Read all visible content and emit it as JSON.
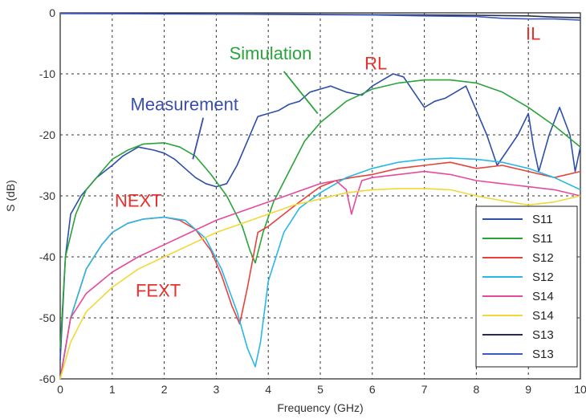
{
  "chart_data": {
    "type": "line",
    "title": "",
    "xlabel": "Frequency (GHz)",
    "ylabel": "S (dB)",
    "xlim": [
      0,
      10
    ],
    "ylim": [
      -60,
      0
    ],
    "xticks": [
      0,
      1,
      2,
      3,
      4,
      5,
      6,
      7,
      8,
      9,
      10
    ],
    "yticks": [
      0,
      -10,
      -20,
      -30,
      -40,
      -50,
      -60
    ],
    "grid": true,
    "legend_position": "bottom-right",
    "series": [
      {
        "name": "S11",
        "color": "#2e4fa8",
        "x": [
          0,
          0.1,
          0.2,
          0.4,
          0.7,
          1.0,
          1.2,
          1.5,
          1.8,
          2.0,
          2.2,
          2.4,
          2.6,
          2.8,
          3.0,
          3.2,
          3.4,
          3.6,
          3.8,
          4.0,
          4.2,
          4.4,
          4.6,
          4.8,
          5.0,
          5.2,
          5.5,
          5.8,
          6.0,
          6.2,
          6.4,
          6.6,
          6.8,
          7.0,
          7.2,
          7.4,
          7.6,
          7.8,
          8.0,
          8.2,
          8.4,
          8.6,
          8.8,
          9.0,
          9.1,
          9.2,
          9.4,
          9.6,
          9.8,
          9.9,
          10.0
        ],
        "y": [
          -57,
          -40,
          -33,
          -30,
          -27,
          -25,
          -23.5,
          -22,
          -22.5,
          -23,
          -24,
          -25.5,
          -27,
          -28,
          -28.5,
          -28,
          -25,
          -21,
          -17,
          -16.5,
          -16,
          -15,
          -14.5,
          -13,
          -12.5,
          -12,
          -13,
          -13.5,
          -12,
          -11,
          -10,
          -10.5,
          -13,
          -15.5,
          -14.5,
          -14,
          -13,
          -12,
          -16,
          -20,
          -25,
          -22.5,
          -20,
          -16.5,
          -22,
          -26,
          -20,
          -15.5,
          -20,
          -26,
          -22
        ]
      },
      {
        "name": "S11",
        "color": "#2aa33b",
        "x": [
          0,
          0.1,
          0.3,
          0.5,
          0.8,
          1.0,
          1.3,
          1.6,
          2.0,
          2.3,
          2.6,
          2.9,
          3.2,
          3.5,
          3.65,
          3.75,
          3.9,
          4.1,
          4.4,
          4.7,
          5.0,
          5.5,
          6.0,
          6.5,
          7.0,
          7.5,
          8.0,
          8.5,
          9.0,
          9.5,
          10.0
        ],
        "y": [
          -55,
          -40,
          -33,
          -29,
          -26,
          -24,
          -22.5,
          -21.5,
          -21.3,
          -22,
          -23.5,
          -26.5,
          -30,
          -35,
          -39,
          -41,
          -36,
          -31,
          -26,
          -21,
          -18,
          -14.5,
          -12.5,
          -11.5,
          -11,
          -11,
          -11.5,
          -13,
          -15.5,
          -18.5,
          -22
        ]
      },
      {
        "name": "S12",
        "color": "#e8413c",
        "x": [
          0,
          0.2,
          0.5,
          0.8,
          1.0,
          1.3,
          1.6,
          2.0,
          2.3,
          2.6,
          2.9,
          3.1,
          3.3,
          3.45,
          3.6,
          3.8,
          4.0,
          4.3,
          4.6,
          5.0,
          5.3,
          5.6,
          6.0,
          6.5,
          7.0,
          7.5,
          8.0,
          8.5,
          9.0,
          9.5,
          10.0
        ],
        "y": [
          -60,
          -50,
          -42,
          -38,
          -36,
          -34.5,
          -33.8,
          -33.5,
          -34,
          -35.5,
          -39,
          -43,
          -48,
          -51,
          -45,
          -36,
          -35,
          -33,
          -31,
          -28.5,
          -27.5,
          -27,
          -26.5,
          -25.5,
          -25,
          -24.5,
          -25.5,
          -25,
          -26,
          -27,
          -26
        ]
      },
      {
        "name": "S12",
        "color": "#29b8e6",
        "x": [
          0,
          0.2,
          0.5,
          0.8,
          1.0,
          1.3,
          1.6,
          2.0,
          2.4,
          2.8,
          3.1,
          3.4,
          3.6,
          3.75,
          3.85,
          4.0,
          4.3,
          4.6,
          5.0,
          5.5,
          6.0,
          6.5,
          7.0,
          7.5,
          8.0,
          8.5,
          9.0,
          9.5,
          10.0
        ],
        "y": [
          -60,
          -50,
          -42,
          -38,
          -36,
          -34.5,
          -33.8,
          -33.5,
          -34,
          -37,
          -42,
          -49,
          -55,
          -58,
          -54,
          -44,
          -36,
          -32,
          -29.5,
          -27,
          -25.5,
          -24.5,
          -24,
          -23.8,
          -24,
          -24.5,
          -25.5,
          -27,
          -29
        ]
      },
      {
        "name": "S14",
        "color": "#e64a9a",
        "x": [
          0,
          0.2,
          0.5,
          1.0,
          1.5,
          2.0,
          2.5,
          3.0,
          3.5,
          4.0,
          4.5,
          5.0,
          5.3,
          5.5,
          5.6,
          5.7,
          5.8,
          6.0,
          6.5,
          7.0,
          7.5,
          8.0,
          8.5,
          9.0,
          9.5,
          10.0
        ],
        "y": [
          -60,
          -50,
          -46,
          -42.5,
          -40,
          -38,
          -36,
          -34,
          -32.5,
          -31,
          -29.5,
          -28,
          -27.5,
          -29,
          -33,
          -30,
          -27.5,
          -27,
          -26.5,
          -26,
          -26.5,
          -27.5,
          -28,
          -28.5,
          -29,
          -30
        ]
      },
      {
        "name": "S14",
        "color": "#f2d835",
        "x": [
          0,
          0.2,
          0.5,
          1.0,
          1.5,
          2.0,
          2.5,
          3.0,
          3.5,
          4.0,
          4.5,
          5.0,
          5.5,
          6.0,
          6.5,
          7.0,
          7.5,
          8.0,
          8.5,
          9.0,
          9.5,
          10.0
        ],
        "y": [
          -60,
          -54,
          -49,
          -45,
          -42,
          -40,
          -38,
          -36,
          -34.5,
          -33,
          -31.5,
          -30.5,
          -29.5,
          -29,
          -28.8,
          -28.8,
          -29,
          -30,
          -30.8,
          -31.5,
          -31,
          -30
        ]
      },
      {
        "name": "S13",
        "color": "#2a2a4a",
        "x": [
          0,
          1,
          2,
          3,
          4,
          5,
          6,
          7,
          8,
          9,
          9.5,
          10
        ],
        "y": [
          -0.1,
          -0.1,
          -0.15,
          -0.2,
          -0.2,
          -0.25,
          -0.3,
          -0.35,
          -0.4,
          -0.5,
          -0.7,
          -0.8
        ]
      },
      {
        "name": "S13",
        "color": "#3a5bbf",
        "x": [
          0,
          1,
          2,
          3,
          4,
          5,
          6,
          7,
          8,
          8.5,
          9,
          9.5,
          10
        ],
        "y": [
          -0.1,
          -0.15,
          -0.2,
          -0.2,
          -0.25,
          -0.3,
          -0.35,
          -0.5,
          -0.6,
          -0.9,
          -1.0,
          -1.0,
          -1.2
        ]
      }
    ],
    "annotations": [
      {
        "text": "IL",
        "color": "#e8302c",
        "x": 8.95,
        "y": -4.4
      },
      {
        "text": "RL",
        "color": "#e8302c",
        "x": 5.85,
        "y": -9.3
      },
      {
        "text": "Simulation",
        "color": "#2aa33b",
        "x": 3.25,
        "y": -7.6
      },
      {
        "text": "Measurement",
        "color": "#3a4fa8",
        "x": 1.35,
        "y": -16.0
      },
      {
        "text": "NEXT",
        "color": "#e8302c",
        "x": 1.05,
        "y": -31.8
      },
      {
        "text": "FEXT",
        "color": "#e8302c",
        "x": 1.45,
        "y": -46.5
      }
    ],
    "pointer_lines": [
      {
        "color": "#2aa33b",
        "x1": 4.3,
        "y1": -9.6,
        "x2": 4.95,
        "y2": -16.5
      },
      {
        "color": "#3a4fa8",
        "x1": 2.75,
        "y1": -17.2,
        "x2": 2.55,
        "y2": -24.0
      }
    ]
  }
}
